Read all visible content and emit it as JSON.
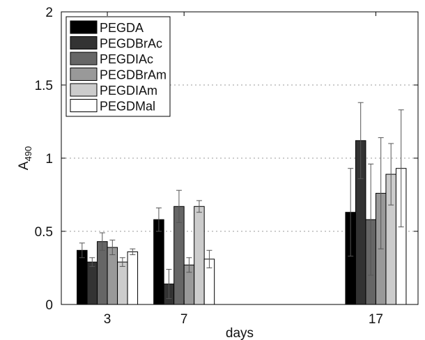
{
  "chart_data": {
    "type": "bar",
    "title": "",
    "xlabel": "days",
    "ylabel": "A",
    "ylabel_sub": "490",
    "ylim": [
      0,
      2
    ],
    "yticks": [
      0,
      0.5,
      1,
      1.5,
      2
    ],
    "ytick_labels": [
      "0",
      "0.5",
      "1",
      "1.5",
      "2"
    ],
    "categories": [
      "3",
      "7",
      "17"
    ],
    "x": [
      3,
      7,
      17
    ],
    "grid": "horizontal dotted",
    "legend_position": "top-left",
    "series": [
      {
        "name": "PEGDA",
        "color": "#000000",
        "values": [
          0.37,
          0.58,
          0.63
        ],
        "errors": [
          0.05,
          0.08,
          0.3
        ]
      },
      {
        "name": "PEGDBrAc",
        "color": "#333333",
        "values": [
          0.29,
          0.14,
          1.12
        ],
        "errors": [
          0.03,
          0.1,
          0.26
        ]
      },
      {
        "name": "PEGDIAc",
        "color": "#666666",
        "values": [
          0.43,
          0.67,
          0.58
        ],
        "errors": [
          0.06,
          0.11,
          0.38
        ]
      },
      {
        "name": "PEGDBrAm",
        "color": "#999999",
        "values": [
          0.39,
          0.27,
          0.76
        ],
        "errors": [
          0.05,
          0.05,
          0.38
        ]
      },
      {
        "name": "PEGDIAm",
        "color": "#cccccc",
        "values": [
          0.29,
          0.67,
          0.89
        ],
        "errors": [
          0.03,
          0.04,
          0.21
        ]
      },
      {
        "name": "PEGDMal",
        "color": "#ffffff",
        "values": [
          0.36,
          0.31,
          0.93
        ],
        "errors": [
          0.02,
          0.06,
          0.4
        ]
      }
    ]
  }
}
